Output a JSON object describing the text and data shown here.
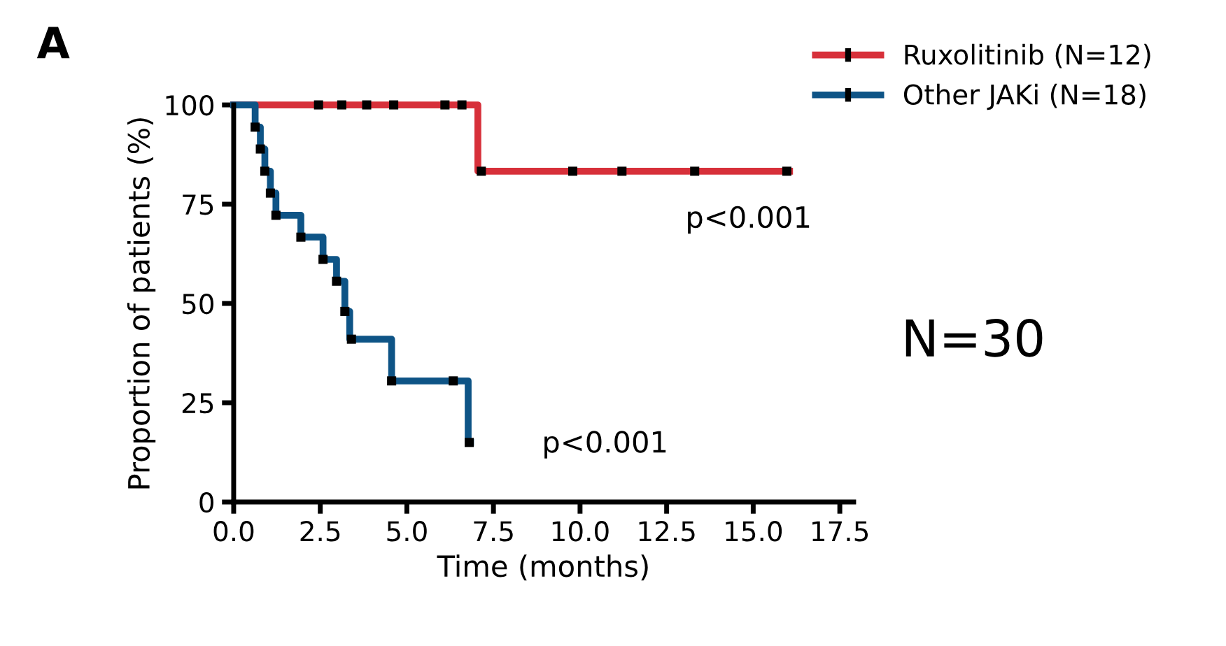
{
  "chart_data": {
    "type": "step",
    "title": "A",
    "xlabel": "Time (months)",
    "ylabel": "Proportion of patients (%)",
    "series": [
      {
        "name": "Ruxolitinib (N=12)",
        "color": "#d7303a",
        "x": [
          0,
          7.05,
          16.05
        ],
        "values": [
          100,
          83.3,
          83.3
        ]
      },
      {
        "name": "Other JAKi (N=18)",
        "color": "#0e5486",
        "x": [
          0,
          0.62,
          0.77,
          0.9,
          1.06,
          1.22,
          1.94,
          2.58,
          2.97,
          3.21,
          3.35,
          4.56,
          6.77,
          6.84
        ],
        "values": [
          100,
          94.4,
          88.9,
          83.3,
          77.8,
          72.2,
          66.7,
          61.1,
          55.6,
          48,
          41,
          30.5,
          15,
          15
        ]
      },
      {
        "type": "scatter",
        "color": "#000000",
        "marker": "square",
        "x": [
          2.45,
          3.12,
          3.84,
          4.62,
          6.1,
          6.59,
          7.15,
          9.79,
          11.21,
          13.31,
          15.97
        ],
        "values": [
          100,
          100,
          100,
          100,
          100,
          100,
          83.3,
          83.3,
          83.3,
          83.3,
          83.3
        ]
      },
      {
        "type": "scatter",
        "color": "#000000",
        "marker": "square",
        "x": [
          0.62,
          0.77,
          0.9,
          1.06,
          1.22,
          1.94,
          2.58,
          2.97,
          3.21,
          3.4,
          4.56,
          6.34,
          6.8
        ],
        "values": [
          94.4,
          88.9,
          83.3,
          77.8,
          72.2,
          66.7,
          61.1,
          55.6,
          48,
          41,
          30.5,
          30.5,
          15
        ]
      }
    ],
    "xlim": [
      0,
      17.9
    ],
    "ylim": [
      0,
      100
    ],
    "xticks": [
      {
        "value": 0,
        "label": "0.0"
      },
      2.5,
      {
        "value": 5,
        "label": "5.0"
      },
      7.5,
      {
        "value": 10,
        "label": "10.0"
      },
      12.5,
      {
        "value": 15,
        "label": "15.0"
      },
      17.5
    ],
    "yticks": [
      0,
      25,
      50,
      75,
      100
    ],
    "annotations": [
      "p<0.001",
      "p<0.001",
      "N=30"
    ],
    "legend": "top right",
    "grid": false,
    "line_style": "solid"
  }
}
